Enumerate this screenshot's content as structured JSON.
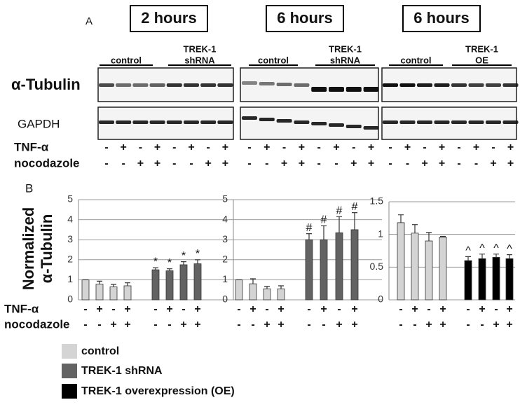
{
  "panel_a": {
    "label": "A",
    "blots": [
      {
        "time": "2 hours",
        "groups": [
          [
            "control"
          ],
          [
            "TREK-1",
            "shRNA"
          ]
        ]
      },
      {
        "time": "6 hours",
        "groups": [
          [
            "control"
          ],
          [
            "TREK-1",
            "shRNA"
          ]
        ]
      },
      {
        "time": "6 hours",
        "groups": [
          [
            "control"
          ],
          [
            "TREK-1",
            "OE"
          ]
        ]
      }
    ],
    "rows": [
      "α-Tubulin",
      "GAPDH"
    ],
    "treatments": [
      {
        "label": "TNF-α",
        "signs": [
          "-",
          "+",
          "-",
          "+",
          "-",
          "+",
          "-",
          "+",
          "-",
          "+",
          "-",
          "+",
          "-",
          "+",
          "-",
          "+",
          "-",
          "+",
          "-",
          "+",
          "-",
          "+",
          "-",
          "+"
        ]
      },
      {
        "label": "nocodazole",
        "signs": [
          "-",
          "-",
          "+",
          "+",
          "-",
          "-",
          "+",
          "+",
          "-",
          "-",
          "+",
          "+",
          "-",
          "-",
          "+",
          "+",
          "-",
          "-",
          "+",
          "+",
          "-",
          "-",
          "+",
          "+"
        ]
      }
    ]
  },
  "panel_b": {
    "label": "B",
    "ylabel": [
      "Normalized",
      "α-Tubulin"
    ],
    "treatment_labels": [
      "TNF-α",
      "nocodazole"
    ]
  },
  "chart_data": [
    {
      "type": "bar",
      "ylim": [
        0,
        5
      ],
      "yticks": [
        0,
        1,
        2,
        3,
        4,
        5
      ],
      "grid": true,
      "tnf_signs": [
        "-",
        "+",
        "-",
        "+",
        "-",
        "+",
        "-",
        "+"
      ],
      "nocodazole_signs": [
        "-",
        "-",
        "+",
        "+",
        "-",
        "-",
        "+",
        "+"
      ],
      "series": [
        {
          "name": "control",
          "color": "#d4d4d4",
          "values": [
            1,
            0.78,
            0.65,
            0.7
          ],
          "errors": [
            0,
            0.15,
            0.12,
            0.15
          ]
        },
        {
          "name": "TREK-1 shRNA",
          "color": "#636363",
          "values": [
            1.5,
            1.45,
            1.75,
            1.8
          ],
          "errors": [
            0.1,
            0.1,
            0.15,
            0.2
          ],
          "annotations": [
            "*",
            "*",
            "*",
            "*"
          ]
        }
      ]
    },
    {
      "type": "bar",
      "ylim": [
        0,
        5
      ],
      "yticks": [
        0,
        1,
        2,
        3,
        4,
        5
      ],
      "grid": true,
      "tnf_signs": [
        "-",
        "+",
        "-",
        "+",
        "-",
        "+",
        "-",
        "+"
      ],
      "nocodazole_signs": [
        "-",
        "-",
        "+",
        "+",
        "-",
        "-",
        "+",
        "+"
      ],
      "series": [
        {
          "name": "control",
          "color": "#d4d4d4",
          "values": [
            1,
            0.8,
            0.55,
            0.55
          ],
          "errors": [
            0,
            0.25,
            0.12,
            0.15
          ]
        },
        {
          "name": "TREK-1 shRNA",
          "color": "#636363",
          "values": [
            3,
            3,
            3.35,
            3.5
          ],
          "errors": [
            0.3,
            0.7,
            0.8,
            0.85
          ],
          "annotations": [
            "#",
            "#",
            "#",
            "#"
          ]
        }
      ]
    },
    {
      "type": "bar",
      "ylim": [
        0,
        1.5
      ],
      "yticks": [
        0,
        0.5,
        1,
        1.5
      ],
      "grid": true,
      "tnf_signs": [
        "-",
        "+",
        "-",
        "+",
        "-",
        "+",
        "-",
        "+"
      ],
      "nocodazole_signs": [
        "-",
        "-",
        "+",
        "+",
        "-",
        "-",
        "+",
        "+"
      ],
      "series": [
        {
          "name": "control",
          "color": "#d4d4d4",
          "values": [
            1.18,
            1.02,
            0.9,
            0.96
          ],
          "errors": [
            0.12,
            0.13,
            0.13,
            0.01
          ]
        },
        {
          "name": "TREK-1 overexpression (OE)",
          "color": "#000000",
          "values": [
            0.6,
            0.63,
            0.65,
            0.63
          ],
          "errors": [
            0.06,
            0.07,
            0.05,
            0.06
          ],
          "annotations": [
            "^",
            "^",
            "^",
            "^"
          ]
        }
      ]
    }
  ]
}
